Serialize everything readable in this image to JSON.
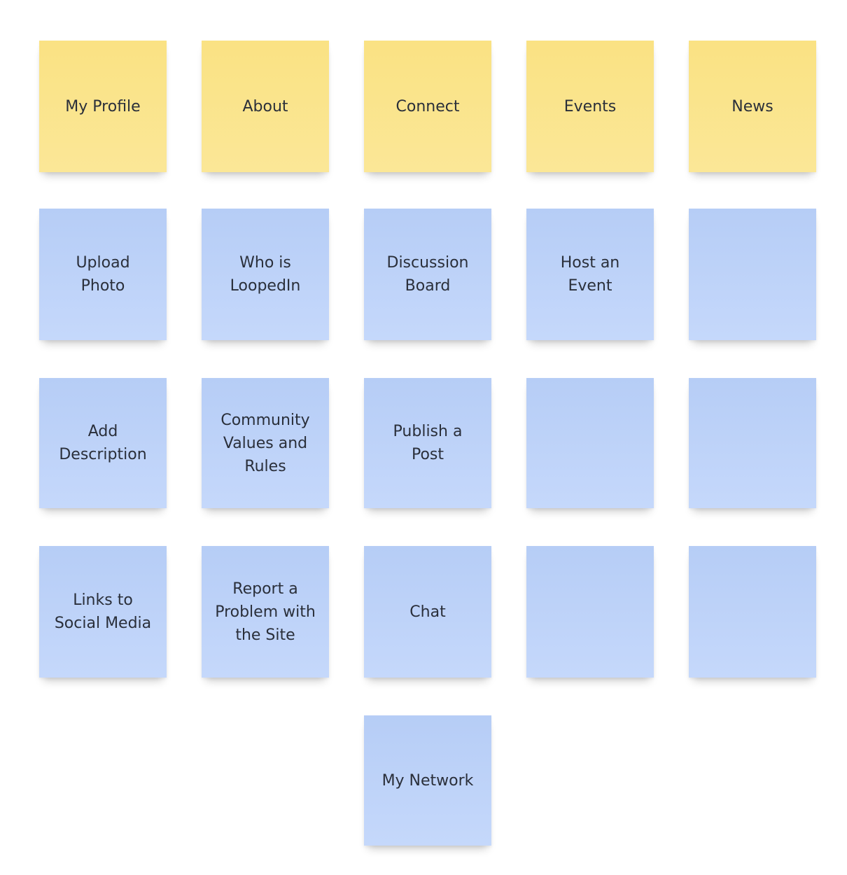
{
  "colors": {
    "header_note": "#fae283",
    "item_note": "#b6cdf6",
    "text": "#2a2f3a",
    "background": "#ffffff"
  },
  "headers": [
    {
      "label": "My Profile"
    },
    {
      "label": "About"
    },
    {
      "label": "Connect"
    },
    {
      "label": "Events"
    },
    {
      "label": "News"
    }
  ],
  "items": {
    "my_profile": [
      {
        "label": "Upload\nPhoto"
      },
      {
        "label": "Add\nDescription"
      },
      {
        "label": "Links to\nSocial Media"
      }
    ],
    "about": [
      {
        "label": "Who is\nLoopedIn"
      },
      {
        "label": "Community\nValues and\nRules"
      },
      {
        "label": "Report a\nProblem with\nthe Site"
      }
    ],
    "connect": [
      {
        "label": "Discussion\nBoard"
      },
      {
        "label": "Publish a\nPost"
      },
      {
        "label": "Chat"
      },
      {
        "label": "My Network"
      }
    ],
    "events": [
      {
        "label": "Host an\nEvent"
      },
      {
        "label": ""
      },
      {
        "label": ""
      }
    ],
    "news": [
      {
        "label": ""
      },
      {
        "label": ""
      },
      {
        "label": ""
      }
    ]
  }
}
